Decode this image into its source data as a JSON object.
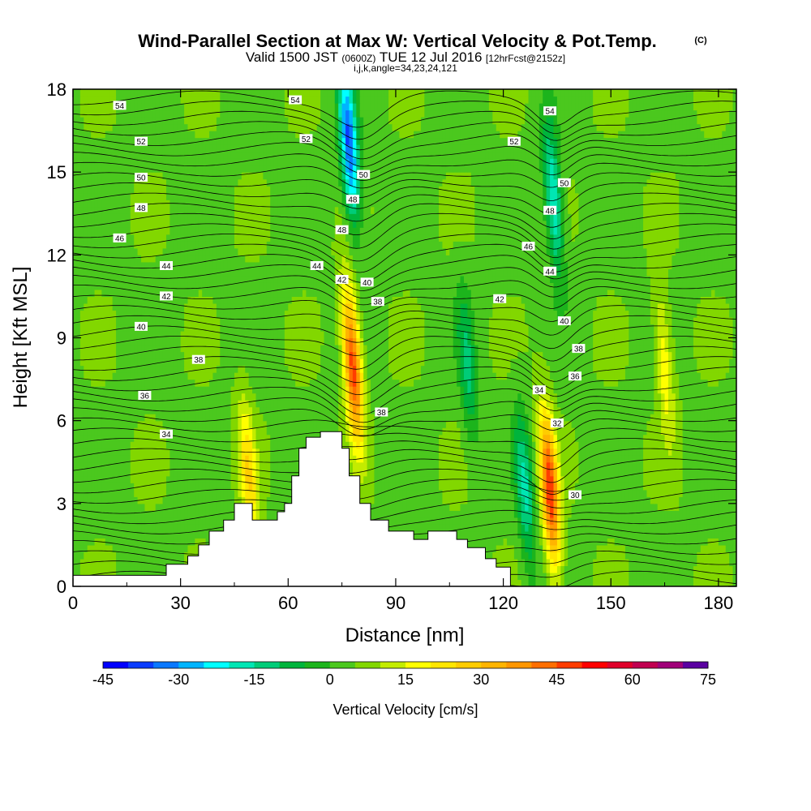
{
  "header": {
    "title": "Wind-Parallel Section at Max W: Vertical Velocity & Pot.Temp.",
    "title_sup": "(C)",
    "valid_a": "Valid 1500 JST",
    "valid_b": "(0600Z)",
    "valid_c": "TUE 12 Jul 2016",
    "valid_d": "[12hrFcst@2152z]",
    "indices": "i,j,k,angle=34,23,24,121"
  },
  "chart_data": {
    "type": "heatmap",
    "xlabel": "Distance [nm]",
    "ylabel": "Height [Kft MSL]",
    "xlim": [
      0,
      185
    ],
    "ylim": [
      0,
      18
    ],
    "xticks": [
      "0",
      "30",
      "60",
      "90",
      "120",
      "150",
      "180"
    ],
    "yticks": [
      "0",
      "3",
      "6",
      "9",
      "12",
      "15",
      "18"
    ],
    "colorbar": {
      "title": "Vertical Velocity [cm/s]",
      "min": -45,
      "max": 75,
      "step": 5,
      "tick_labels": [
        "-45",
        "-30",
        "-15",
        "0",
        "15",
        "30",
        "45",
        "60",
        "75"
      ],
      "colors": [
        "#0000ff",
        "#0a3cff",
        "#0a78ff",
        "#00b4ff",
        "#00ffff",
        "#00e6b4",
        "#00cc78",
        "#00b43c",
        "#1cb41c",
        "#4bc81e",
        "#82d700",
        "#c3ec00",
        "#ffff00",
        "#ffe600",
        "#ffcc00",
        "#ffb400",
        "#ff9600",
        "#ff6e00",
        "#ff3c00",
        "#ff0000",
        "#e0002a",
        "#c00050",
        "#a00078",
        "#5a00a0"
      ]
    },
    "vertical_velocity_features": [
      {
        "x": 78,
        "y_center": 8,
        "peak": 45,
        "kind": "updraft"
      },
      {
        "x": 77,
        "y_center": 16,
        "peak": -40,
        "kind": "downdraft"
      },
      {
        "x": 133,
        "y_center": 3.5,
        "peak": 45,
        "kind": "updraft"
      },
      {
        "x": 126,
        "y_center": 3.5,
        "peak": -20,
        "kind": "downdraft"
      },
      {
        "x": 134,
        "y_center": 14,
        "peak": -25,
        "kind": "downdraft"
      },
      {
        "x": 49,
        "y_center": 4,
        "peak": 20,
        "kind": "updraft"
      },
      {
        "x": 165,
        "y_center": 8,
        "peak": 15,
        "kind": "updraft"
      },
      {
        "x": 110,
        "y_center": 8,
        "peak": -15,
        "kind": "downdraft"
      }
    ],
    "terrain": [
      [
        0,
        0.4
      ],
      [
        25,
        0.4
      ],
      [
        26,
        0.8
      ],
      [
        32,
        1.1
      ],
      [
        35,
        1.5
      ],
      [
        38,
        2.0
      ],
      [
        42,
        2.4
      ],
      [
        45,
        3.0
      ],
      [
        49,
        3.0
      ],
      [
        50,
        2.4
      ],
      [
        55,
        2.4
      ],
      [
        57,
        2.7
      ],
      [
        59,
        3.0
      ],
      [
        61,
        4.0
      ],
      [
        63,
        5.0
      ],
      [
        65,
        5.4
      ],
      [
        69,
        5.6
      ],
      [
        73,
        5.6
      ],
      [
        75,
        5.0
      ],
      [
        77,
        4.0
      ],
      [
        80,
        3.0
      ],
      [
        83,
        2.4
      ],
      [
        88,
        2.0
      ],
      [
        93,
        2.0
      ],
      [
        95,
        1.7
      ],
      [
        98,
        1.7
      ],
      [
        99,
        2.0
      ],
      [
        104,
        2.0
      ],
      [
        107,
        1.7
      ],
      [
        110,
        1.4
      ],
      [
        115,
        1.0
      ],
      [
        118,
        0.7
      ],
      [
        121,
        0.7
      ],
      [
        122,
        0
      ],
      [
        185,
        0
      ]
    ],
    "potential_temperature_labels": [
      {
        "x": 13,
        "y": 17.4,
        "text": "54"
      },
      {
        "x": 19,
        "y": 16.1,
        "text": "52"
      },
      {
        "x": 19,
        "y": 14.8,
        "text": "50"
      },
      {
        "x": 19,
        "y": 13.7,
        "text": "48"
      },
      {
        "x": 13,
        "y": 12.6,
        "text": "46"
      },
      {
        "x": 26,
        "y": 11.6,
        "text": "44"
      },
      {
        "x": 26,
        "y": 10.5,
        "text": "42"
      },
      {
        "x": 19,
        "y": 9.4,
        "text": "40"
      },
      {
        "x": 35,
        "y": 8.2,
        "text": "38"
      },
      {
        "x": 20,
        "y": 6.9,
        "text": "36"
      },
      {
        "x": 26,
        "y": 5.5,
        "text": "34"
      },
      {
        "x": 62,
        "y": 17.6,
        "text": "54"
      },
      {
        "x": 65,
        "y": 16.2,
        "text": "52"
      },
      {
        "x": 81,
        "y": 14.9,
        "text": "50"
      },
      {
        "x": 78,
        "y": 14.0,
        "text": "48"
      },
      {
        "x": 75,
        "y": 12.9,
        "text": "48"
      },
      {
        "x": 68,
        "y": 11.6,
        "text": "44"
      },
      {
        "x": 75,
        "y": 11.1,
        "text": "42"
      },
      {
        "x": 82,
        "y": 11.0,
        "text": "40"
      },
      {
        "x": 85,
        "y": 10.3,
        "text": "38"
      },
      {
        "x": 86,
        "y": 6.3,
        "text": "38"
      },
      {
        "x": 133,
        "y": 17.2,
        "text": "54"
      },
      {
        "x": 123,
        "y": 16.1,
        "text": "52"
      },
      {
        "x": 137,
        "y": 14.6,
        "text": "50"
      },
      {
        "x": 133,
        "y": 13.6,
        "text": "48"
      },
      {
        "x": 127,
        "y": 12.3,
        "text": "46"
      },
      {
        "x": 133,
        "y": 11.4,
        "text": "44"
      },
      {
        "x": 119,
        "y": 10.4,
        "text": "42"
      },
      {
        "x": 137,
        "y": 9.6,
        "text": "40"
      },
      {
        "x": 141,
        "y": 8.6,
        "text": "38"
      },
      {
        "x": 140,
        "y": 7.6,
        "text": "36"
      },
      {
        "x": 130,
        "y": 7.1,
        "text": "34"
      },
      {
        "x": 135,
        "y": 5.9,
        "text": "32"
      },
      {
        "x": 140,
        "y": 3.3,
        "text": "30"
      }
    ]
  }
}
